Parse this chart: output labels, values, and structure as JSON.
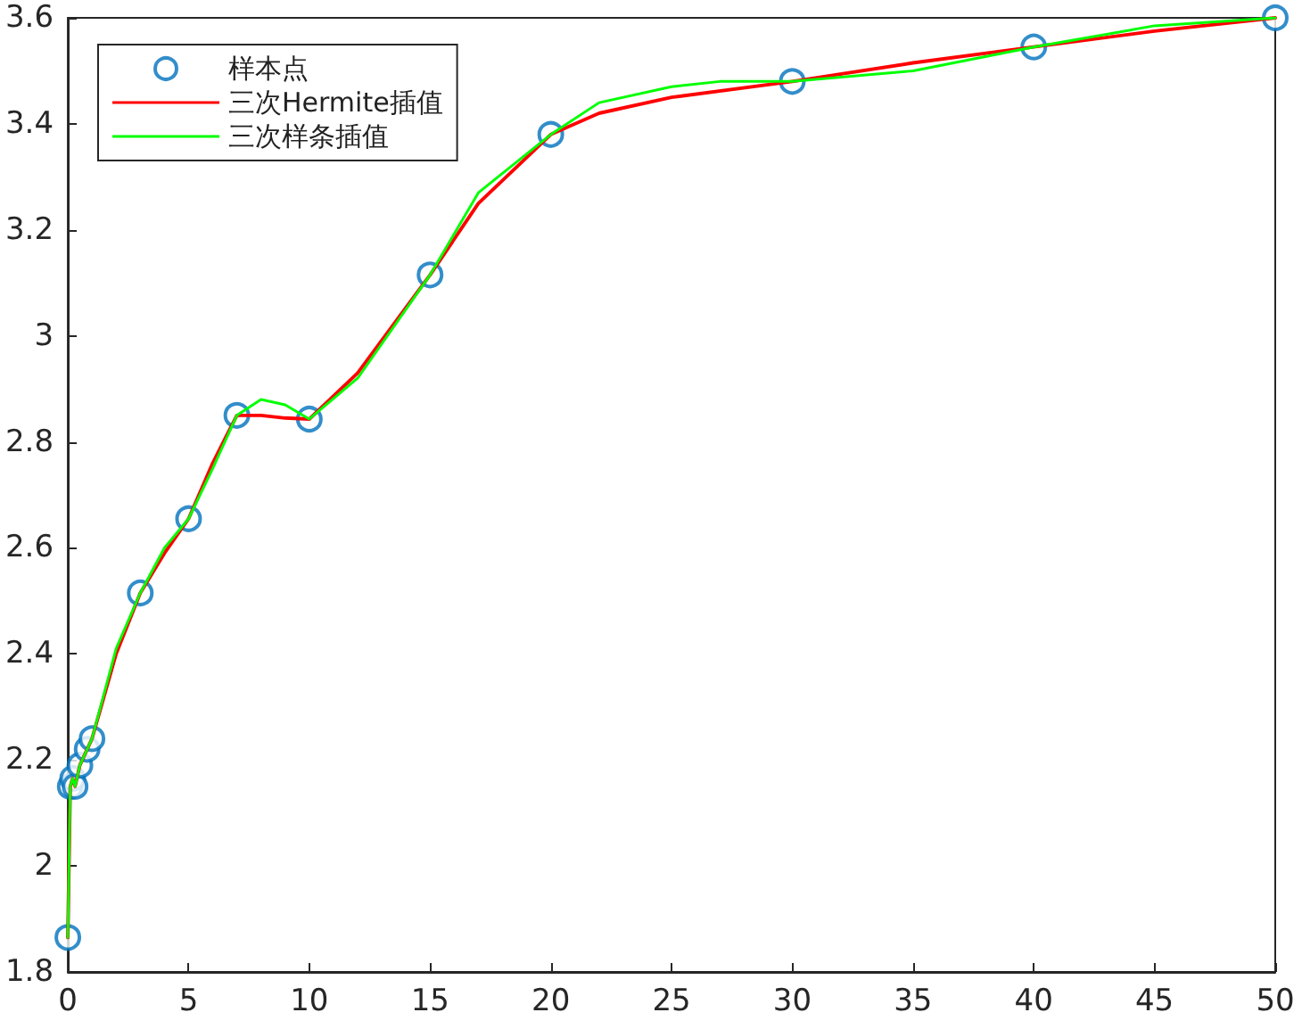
{
  "chart_data": {
    "type": "line",
    "xlim": [
      0,
      50
    ],
    "xticks": [
      0,
      5,
      10,
      15,
      20,
      25,
      30,
      35,
      40,
      45,
      50
    ],
    "ylim": [
      1.8,
      3.6
    ],
    "yticks": [
      1.8,
      2,
      2.2,
      2.4,
      2.6,
      2.8,
      3,
      3.2,
      3.4,
      3.6
    ],
    "grid": false,
    "legend": "top left",
    "series": [
      {
        "name": "样本点",
        "type": "scatter",
        "marker": "circle",
        "color": "#0072bd",
        "x": [
          0,
          0.1,
          0.2,
          0.3,
          0.5,
          0.8,
          1,
          3,
          5,
          7,
          10,
          15,
          20,
          30,
          40,
          50
        ],
        "values": [
          1.865,
          2.15,
          2.165,
          2.15,
          2.19,
          2.22,
          2.24,
          2.515,
          2.655,
          2.85,
          2.843,
          3.115,
          3.38,
          3.48,
          3.545,
          3.6
        ]
      },
      {
        "name": "三次Hermite插值",
        "marker": "none",
        "line_style": "solid",
        "color": "#ff0000",
        "x": [
          0,
          0.1,
          0.2,
          0.3,
          0.5,
          0.8,
          1,
          2,
          3,
          4,
          5,
          6,
          7,
          8,
          9,
          10,
          12,
          15,
          17,
          20,
          22,
          25,
          30,
          35,
          40,
          45,
          50
        ],
        "values": [
          1.865,
          2.15,
          2.165,
          2.15,
          2.19,
          2.22,
          2.24,
          2.4,
          2.515,
          2.59,
          2.655,
          2.76,
          2.85,
          2.85,
          2.845,
          2.843,
          2.93,
          3.115,
          3.25,
          3.38,
          3.42,
          3.45,
          3.48,
          3.515,
          3.545,
          3.575,
          3.6
        ]
      },
      {
        "name": "三次样条插值",
        "marker": "none",
        "line_style": "solid",
        "color": "#00ff00",
        "x": [
          0,
          0.1,
          0.2,
          0.3,
          0.5,
          0.8,
          1,
          2,
          3,
          4,
          5,
          6,
          7,
          8,
          9,
          10,
          12,
          15,
          17,
          20,
          22,
          25,
          27,
          30,
          35,
          40,
          45,
          50
        ],
        "values": [
          1.865,
          2.15,
          2.165,
          2.15,
          2.19,
          2.22,
          2.24,
          2.41,
          2.515,
          2.6,
          2.655,
          2.75,
          2.85,
          2.88,
          2.87,
          2.843,
          2.92,
          3.115,
          3.27,
          3.38,
          3.44,
          3.47,
          3.48,
          3.48,
          3.5,
          3.545,
          3.585,
          3.6
        ]
      }
    ]
  }
}
